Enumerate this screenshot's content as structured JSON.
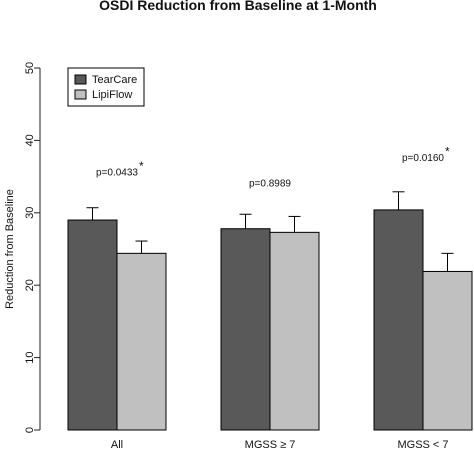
{
  "chart_data": {
    "type": "bar",
    "title": "OSDI Reduction from Baseline at 1-Month",
    "xlabel": "",
    "ylabel": "Reduction from Baseline",
    "ylim": [
      0,
      50
    ],
    "yticks": [
      "0",
      "10",
      "20",
      "30",
      "40",
      "50"
    ],
    "categories": [
      "All",
      "MGSS ≥ 7",
      "MGSS < 7"
    ],
    "series": [
      {
        "name": "TearCare",
        "color": "#595959",
        "values": [
          29.0,
          27.8,
          30.4
        ],
        "error_upper": [
          30.7,
          29.8,
          32.9
        ]
      },
      {
        "name": "LipiFlow",
        "color": "#c0c0c0",
        "values": [
          24.4,
          27.3,
          21.9
        ],
        "error_upper": [
          26.1,
          29.5,
          24.4
        ]
      }
    ],
    "annotations": [
      {
        "category": "All",
        "text": "p=0.0433",
        "star": "*",
        "y": 35.5
      },
      {
        "category": "MGSS ≥ 7",
        "text": "p=0.8989",
        "star": "",
        "y": 34.0
      },
      {
        "category": "MGSS < 7",
        "text": "p=0.0160",
        "star": "*",
        "y": 37.5
      }
    ],
    "legend_position": "top-left",
    "grid": false
  }
}
